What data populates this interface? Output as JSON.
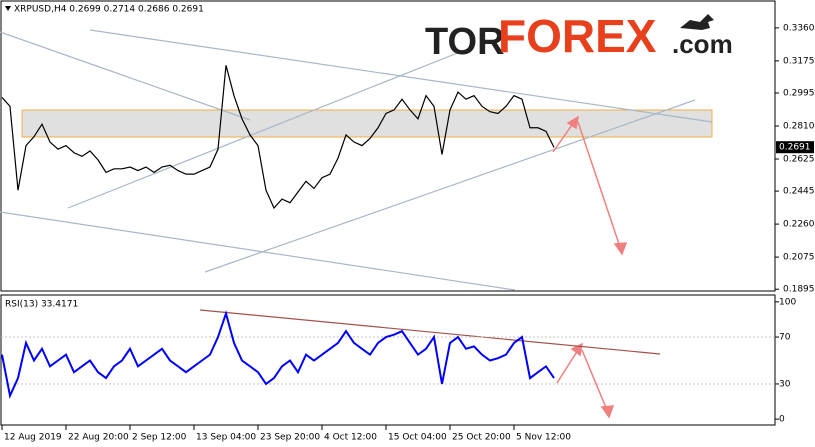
{
  "logo": {
    "parts": [
      "TOR",
      "FOREX",
      ".com"
    ]
  },
  "chart_data": [
    {
      "type": "line",
      "title": "XRPUSD,H4 0.2699 0.2714 0.2686 0.2691",
      "categories": [
        "12 Aug 2019",
        null,
        null,
        null,
        null,
        null,
        null,
        null,
        "22 Aug 20:00",
        null,
        null,
        null,
        null,
        null,
        null,
        null,
        "2 Sep 12:00",
        null,
        null,
        null,
        null,
        null,
        null,
        null,
        "13 Sep 04:00",
        null,
        null,
        null,
        null,
        null,
        null,
        null,
        "23 Sep 20:00",
        null,
        null,
        null,
        null,
        null,
        null,
        null,
        "4 Oct 12:00",
        null,
        null,
        null,
        null,
        null,
        null,
        null,
        "15 Oct 04:00",
        null,
        null,
        null,
        null,
        null,
        null,
        null,
        "25 Oct 20:00",
        null,
        null,
        null,
        null,
        null,
        null,
        null,
        "5 Nov 12:00",
        null,
        null,
        null,
        null,
        null
      ],
      "values": [
        0.297,
        0.292,
        0.245,
        0.27,
        0.275,
        0.282,
        0.272,
        0.268,
        0.27,
        0.266,
        0.264,
        0.267,
        0.262,
        0.255,
        0.257,
        0.257,
        0.258,
        0.256,
        0.258,
        0.255,
        0.258,
        0.259,
        0.256,
        0.254,
        0.254,
        0.256,
        0.258,
        0.268,
        0.315,
        0.298,
        0.285,
        0.276,
        0.27,
        0.245,
        0.235,
        0.24,
        0.238,
        0.244,
        0.25,
        0.246,
        0.252,
        0.254,
        0.263,
        0.276,
        0.272,
        0.27,
        0.274,
        0.28,
        0.288,
        0.29,
        0.296,
        0.29,
        0.285,
        0.298,
        0.292,
        0.265,
        0.29,
        0.3,
        0.296,
        0.298,
        0.292,
        0.289,
        0.288,
        0.292,
        0.298,
        0.296,
        0.28,
        0.28,
        0.278,
        0.269
      ],
      "color": "#000000",
      "last_price": 0.2691,
      "ylim": [
        0.1885,
        0.3505
      ],
      "yticks": [
        {
          "value": 0.336,
          "label": "0.3360"
        },
        0.3175,
        0.2995,
        {
          "value": 0.281,
          "label": "0.2810"
        },
        0.2625,
        0.2445,
        {
          "value": 0.226,
          "label": "0.2260"
        },
        0.2075,
        0.1895
      ]
    },
    {
      "type": "line",
      "title": "RSI(13) 33.4171",
      "values": [
        55,
        20,
        35,
        65,
        50,
        60,
        45,
        50,
        55,
        40,
        45,
        50,
        40,
        35,
        45,
        50,
        60,
        45,
        50,
        55,
        60,
        50,
        45,
        40,
        45,
        50,
        55,
        70,
        90,
        65,
        50,
        45,
        40,
        30,
        35,
        45,
        50,
        40,
        55,
        50,
        55,
        60,
        65,
        75,
        65,
        60,
        55,
        65,
        70,
        72,
        75,
        65,
        55,
        60,
        70,
        30,
        65,
        70,
        60,
        62,
        55,
        50,
        52,
        55,
        65,
        70,
        35,
        40,
        45,
        35
      ],
      "color": "#0000ff",
      "ylim": [
        -5,
        105
      ],
      "yticks": [
        100,
        70,
        30,
        0
      ]
    }
  ]
}
